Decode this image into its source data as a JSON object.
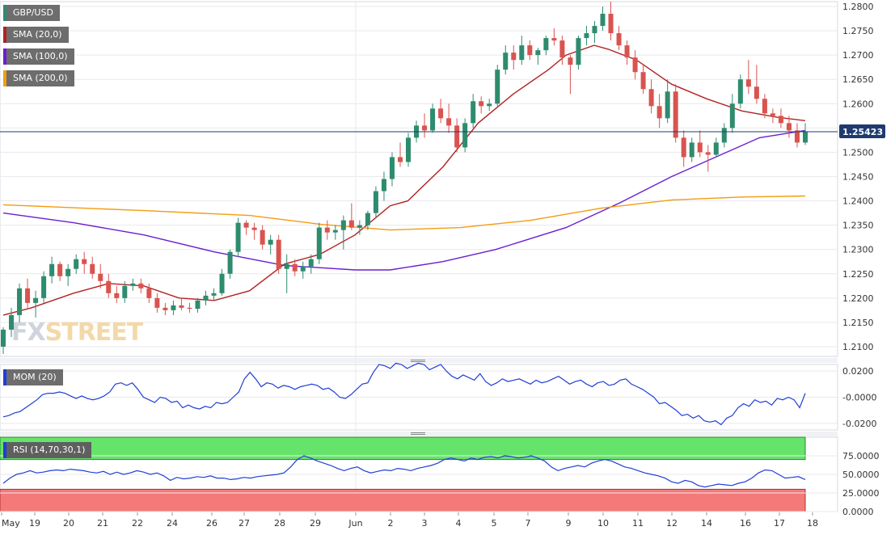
{
  "colors": {
    "bull": "#2e8b6e",
    "bear": "#d9534f",
    "sma20": "#b22222",
    "sma100": "#6a1fd0",
    "sma200": "#f39c12",
    "mom": "#1f3fd6",
    "rsi": "#1f3fd6",
    "rsi_over": "#66e36a",
    "rsi_under": "#f47a7a",
    "price_line": "#1e3a6e",
    "grid": "#e9e9ef"
  },
  "legend": {
    "pair": "GBP/USD",
    "sma20": "SMA (20,0)",
    "sma100": "SMA (100,0)",
    "sma200": "SMA (200,0)",
    "mom": "MOM (20)",
    "rsi": "RSI (14,70,30,1)"
  },
  "watermark": {
    "fx": "FX",
    "street": "STREET"
  },
  "current_price_label": "1.25423",
  "chart_data": [
    {
      "type": "candlestick",
      "title": "GBP/USD",
      "ylim": [
        1.208,
        1.281
      ],
      "y_ticks": [
        "1.2800",
        "1.2750",
        "1.2700",
        "1.2650",
        "1.2600",
        "1.2550",
        "1.2500",
        "1.2450",
        "1.2400",
        "1.2350",
        "1.2300",
        "1.2250",
        "1.2200",
        "1.2150",
        "1.2100"
      ],
      "x_ticks": [
        "May",
        "19",
        "20",
        "21",
        "22",
        "24",
        "26",
        "27",
        "28",
        "29",
        "Jun",
        "2",
        "3",
        "4",
        "5",
        "7",
        "9",
        "10",
        "11",
        "12",
        "14",
        "16",
        "17",
        "18"
      ],
      "current_price": 1.25423,
      "grid": true,
      "sma": [
        {
          "name": "SMA (20,0)",
          "color": "#b22222",
          "points": [
            [
              0,
              1.2165
            ],
            [
              8,
              1.218
            ],
            [
              20,
              1.221
            ],
            [
              30,
              1.223
            ],
            [
              40,
              1.2225
            ],
            [
              50,
              1.22
            ],
            [
              60,
              1.2195
            ],
            [
              70,
              1.2215
            ],
            [
              80,
              1.227
            ],
            [
              90,
              1.229
            ],
            [
              100,
              1.233
            ],
            [
              110,
              1.239
            ],
            [
              115,
              1.24
            ],
            [
              125,
              1.247
            ],
            [
              135,
              1.256
            ],
            [
              145,
              1.262
            ],
            [
              155,
              1.267
            ],
            [
              160,
              1.27
            ],
            [
              168,
              1.272
            ],
            [
              172,
              1.2712
            ],
            [
              180,
              1.269
            ],
            [
              190,
              1.264
            ],
            [
              200,
              1.261
            ],
            [
              210,
              1.2585
            ],
            [
              220,
              1.2572
            ],
            [
              228,
              1.2565
            ]
          ]
        },
        {
          "name": "SMA (100,0)",
          "color": "#6a1fd0",
          "points": [
            [
              0,
              1.2375
            ],
            [
              20,
              1.2355
            ],
            [
              40,
              1.233
            ],
            [
              60,
              1.2295
            ],
            [
              80,
              1.2267
            ],
            [
              100,
              1.2258
            ],
            [
              110,
              1.2258
            ],
            [
              125,
              1.2275
            ],
            [
              140,
              1.23
            ],
            [
              160,
              1.2345
            ],
            [
              175,
              1.2395
            ],
            [
              190,
              1.245
            ],
            [
              205,
              1.2498
            ],
            [
              215,
              1.253
            ],
            [
              228,
              1.2545
            ]
          ]
        },
        {
          "name": "SMA (200,0)",
          "color": "#f39c12",
          "points": [
            [
              0,
              1.2392
            ],
            [
              40,
              1.238
            ],
            [
              70,
              1.237
            ],
            [
              90,
              1.2352
            ],
            [
              110,
              1.234
            ],
            [
              130,
              1.2345
            ],
            [
              150,
              1.236
            ],
            [
              170,
              1.2385
            ],
            [
              190,
              1.2402
            ],
            [
              210,
              1.2408
            ],
            [
              228,
              1.241
            ]
          ]
        }
      ],
      "candles": [
        [
          1.21,
          1.214,
          1.2085,
          1.2135
        ],
        [
          1.2135,
          1.218,
          1.212,
          1.2165
        ],
        [
          1.2165,
          1.223,
          1.215,
          1.222
        ],
        [
          1.222,
          1.224,
          1.218,
          1.219
        ],
        [
          1.219,
          1.2215,
          1.216,
          1.22
        ],
        [
          1.22,
          1.2255,
          1.219,
          1.2245
        ],
        [
          1.2245,
          1.2285,
          1.223,
          1.227
        ],
        [
          1.227,
          1.2275,
          1.2235,
          1.2245
        ],
        [
          1.2245,
          1.227,
          1.2225,
          1.226
        ],
        [
          1.226,
          1.229,
          1.225,
          1.228
        ],
        [
          1.228,
          1.2295,
          1.225,
          1.227
        ],
        [
          1.227,
          1.2285,
          1.224,
          1.225
        ],
        [
          1.225,
          1.227,
          1.222,
          1.2235
        ],
        [
          1.2235,
          1.225,
          1.22,
          1.221
        ],
        [
          1.221,
          1.2225,
          1.219,
          1.22
        ],
        [
          1.22,
          1.2235,
          1.219,
          1.2225
        ],
        [
          1.2225,
          1.224,
          1.2215,
          1.223
        ],
        [
          1.223,
          1.224,
          1.221,
          1.222
        ],
        [
          1.222,
          1.223,
          1.219,
          1.22
        ],
        [
          1.22,
          1.221,
          1.217,
          1.218
        ],
        [
          1.218,
          1.219,
          1.2165,
          1.2175
        ],
        [
          1.2175,
          1.2195,
          1.2165,
          1.2185
        ],
        [
          1.2185,
          1.22,
          1.2175,
          1.218
        ],
        [
          1.218,
          1.219,
          1.217,
          1.2178
        ],
        [
          1.2178,
          1.22,
          1.217,
          1.2195
        ],
        [
          1.2195,
          1.2215,
          1.2185,
          1.2205
        ],
        [
          1.2205,
          1.222,
          1.2195,
          1.221
        ],
        [
          1.221,
          1.226,
          1.2205,
          1.225
        ],
        [
          1.225,
          1.23,
          1.224,
          1.2295
        ],
        [
          1.2295,
          1.2365,
          1.2285,
          1.2355
        ],
        [
          1.2355,
          1.236,
          1.233,
          1.2345
        ],
        [
          1.2345,
          1.2355,
          1.232,
          1.234
        ],
        [
          1.234,
          1.235,
          1.23,
          1.231
        ],
        [
          1.231,
          1.233,
          1.229,
          1.232
        ],
        [
          1.232,
          1.233,
          1.225,
          1.226
        ],
        [
          1.226,
          1.229,
          1.221,
          1.227
        ],
        [
          1.227,
          1.228,
          1.2245,
          1.2255
        ],
        [
          1.2255,
          1.2275,
          1.224,
          1.2265
        ],
        [
          1.2265,
          1.229,
          1.225,
          1.228
        ],
        [
          1.228,
          1.2355,
          1.227,
          1.2345
        ],
        [
          1.2345,
          1.236,
          1.232,
          1.2335
        ],
        [
          1.2335,
          1.235,
          1.232,
          1.234
        ],
        [
          1.234,
          1.237,
          1.23,
          1.236
        ],
        [
          1.236,
          1.2395,
          1.234,
          1.2345
        ],
        [
          1.2345,
          1.236,
          1.233,
          1.235
        ],
        [
          1.235,
          1.238,
          1.234,
          1.2375
        ],
        [
          1.2375,
          1.243,
          1.2365,
          1.242
        ],
        [
          1.242,
          1.246,
          1.24,
          1.2445
        ],
        [
          1.2445,
          1.25,
          1.243,
          1.249
        ],
        [
          1.249,
          1.252,
          1.247,
          1.248
        ],
        [
          1.248,
          1.254,
          1.247,
          1.253
        ],
        [
          1.253,
          1.2565,
          1.252,
          1.2555
        ],
        [
          1.2555,
          1.258,
          1.253,
          1.2545
        ],
        [
          1.2545,
          1.26,
          1.254,
          1.259
        ],
        [
          1.259,
          1.261,
          1.256,
          1.257
        ],
        [
          1.257,
          1.26,
          1.254,
          1.2555
        ],
        [
          1.2555,
          1.257,
          1.25,
          1.251
        ],
        [
          1.251,
          1.257,
          1.25,
          1.256
        ],
        [
          1.256,
          1.262,
          1.255,
          1.2605
        ],
        [
          1.2605,
          1.2615,
          1.258,
          1.2595
        ],
        [
          1.2595,
          1.261,
          1.2585,
          1.26
        ],
        [
          1.26,
          1.268,
          1.2595,
          1.267
        ],
        [
          1.267,
          1.272,
          1.266,
          1.2705
        ],
        [
          1.2705,
          1.272,
          1.267,
          1.269
        ],
        [
          1.269,
          1.274,
          1.268,
          1.272
        ],
        [
          1.272,
          1.273,
          1.269,
          1.27
        ],
        [
          1.27,
          1.2715,
          1.268,
          1.271
        ],
        [
          1.271,
          1.274,
          1.27,
          1.2735
        ],
        [
          1.2735,
          1.2755,
          1.272,
          1.273
        ],
        [
          1.273,
          1.274,
          1.268,
          1.2695
        ],
        [
          1.2695,
          1.27,
          1.262,
          1.268
        ],
        [
          1.268,
          1.274,
          1.267,
          1.2735
        ],
        [
          1.2735,
          1.276,
          1.272,
          1.2745
        ],
        [
          1.2745,
          1.277,
          1.2725,
          1.276
        ],
        [
          1.276,
          1.28,
          1.275,
          1.2785
        ],
        [
          1.2785,
          1.281,
          1.273,
          1.2745
        ],
        [
          1.2745,
          1.276,
          1.271,
          1.272
        ],
        [
          1.272,
          1.273,
          1.268,
          1.2695
        ],
        [
          1.2695,
          1.271,
          1.265,
          1.2665
        ],
        [
          1.2665,
          1.268,
          1.262,
          1.263
        ],
        [
          1.263,
          1.265,
          1.258,
          1.2595
        ],
        [
          1.2595,
          1.262,
          1.255,
          1.257
        ],
        [
          1.257,
          1.265,
          1.256,
          1.2625
        ],
        [
          1.2625,
          1.264,
          1.252,
          1.253
        ],
        [
          1.253,
          1.2545,
          1.247,
          1.249
        ],
        [
          1.249,
          1.253,
          1.248,
          1.252
        ],
        [
          1.252,
          1.2545,
          1.249,
          1.25
        ],
        [
          1.25,
          1.2515,
          1.246,
          1.2495
        ],
        [
          1.2495,
          1.253,
          1.249,
          1.252
        ],
        [
          1.252,
          1.256,
          1.251,
          1.255
        ],
        [
          1.255,
          1.262,
          1.254,
          1.26
        ],
        [
          1.26,
          1.266,
          1.259,
          1.265
        ],
        [
          1.265,
          1.269,
          1.262,
          1.2635
        ],
        [
          1.2635,
          1.268,
          1.26,
          1.261
        ],
        [
          1.261,
          1.262,
          1.257,
          1.258
        ],
        [
          1.258,
          1.259,
          1.256,
          1.2575
        ],
        [
          1.2575,
          1.259,
          1.255,
          1.256
        ],
        [
          1.256,
          1.2575,
          1.253,
          1.2545
        ],
        [
          1.2545,
          1.256,
          1.251,
          1.252
        ],
        [
          1.252,
          1.256,
          1.2515,
          1.2542
        ]
      ]
    },
    {
      "type": "line",
      "title": "MOM (20)",
      "ylim": [
        -0.025,
        0.025
      ],
      "y_ticks": [
        "0.0200",
        "-0.0000",
        "-0.0200"
      ],
      "series": [
        {
          "name": "MOM (20)",
          "values": [
            -0.015,
            -0.014,
            -0.012,
            -0.011,
            -0.008,
            -0.005,
            -0.002,
            0.002,
            0.003,
            0.003,
            0.004,
            0.003,
            0.001,
            -0.001,
            0.001,
            -0.001,
            -0.002,
            -0.001,
            0.001,
            0.004,
            0.01,
            0.011,
            0.009,
            0.011,
            0.006,
            0.0,
            -0.002,
            -0.004,
            0.0,
            -0.001,
            -0.004,
            -0.003,
            -0.008,
            -0.006,
            -0.008,
            -0.009,
            -0.007,
            -0.008,
            -0.004,
            -0.005,
            -0.004,
            0.0,
            0.004,
            0.014,
            0.019,
            0.014,
            0.008,
            0.011,
            0.01,
            0.007,
            0.009,
            0.008,
            0.006,
            0.008,
            0.009,
            0.01,
            0.009,
            0.006,
            0.007,
            0.004,
            0.0,
            -0.001,
            0.002,
            0.006,
            0.01,
            0.011,
            0.019,
            0.025,
            0.024,
            0.022,
            0.026,
            0.025,
            0.022,
            0.024,
            0.026,
            0.025,
            0.021,
            0.023,
            0.025,
            0.02,
            0.016,
            0.014,
            0.017,
            0.015,
            0.013,
            0.018,
            0.012,
            0.009,
            0.011,
            0.014,
            0.012,
            0.013,
            0.014,
            0.012,
            0.01,
            0.013,
            0.011,
            0.012,
            0.014,
            0.016,
            0.013,
            0.01,
            0.012,
            0.013,
            0.01,
            0.008,
            0.011,
            0.012,
            0.009,
            0.01,
            0.013,
            0.014,
            0.01,
            0.008,
            0.006,
            0.003,
            0.0,
            -0.005,
            -0.004,
            -0.007,
            -0.01,
            -0.014,
            -0.013,
            -0.016,
            -0.014,
            -0.018,
            -0.019,
            -0.018,
            -0.021,
            -0.016,
            -0.014,
            -0.008,
            -0.005,
            -0.007,
            -0.002,
            -0.004,
            -0.003,
            -0.006,
            -0.001,
            -0.002,
            0.0,
            -0.002,
            -0.008,
            0.003
          ]
        }
      ],
      "grid": true
    },
    {
      "type": "line",
      "title": "RSI (14,70,30,1)",
      "ylim": [
        0,
        100
      ],
      "y_ticks": [
        "75.0000",
        "50.0000",
        "25.0000",
        "0.0000"
      ],
      "overbought": 70,
      "oversold": 30,
      "series": [
        {
          "name": "RSI (14,70,30,1)",
          "values": [
            38,
            45,
            50,
            52,
            55,
            52,
            53,
            55,
            56,
            55,
            57,
            56,
            55,
            53,
            52,
            54,
            50,
            53,
            50,
            52,
            55,
            53,
            50,
            52,
            48,
            42,
            46,
            44,
            45,
            47,
            46,
            48,
            45,
            45,
            43,
            44,
            46,
            45,
            47,
            48,
            49,
            50,
            52,
            60,
            70,
            75,
            72,
            68,
            65,
            62,
            58,
            55,
            58,
            60,
            55,
            52,
            54,
            56,
            55,
            58,
            57,
            55,
            58,
            60,
            62,
            65,
            70,
            72,
            70,
            68,
            72,
            70,
            73,
            74,
            72,
            75,
            74,
            72,
            73,
            75,
            72,
            68,
            60,
            55,
            58,
            60,
            62,
            60,
            65,
            68,
            70,
            68,
            64,
            60,
            58,
            55,
            52,
            50,
            48,
            45,
            40,
            38,
            42,
            40,
            35,
            33,
            35,
            37,
            36,
            35,
            38,
            40,
            45,
            52,
            56,
            55,
            50,
            45,
            46,
            47,
            43
          ]
        }
      ],
      "grid": true
    }
  ]
}
